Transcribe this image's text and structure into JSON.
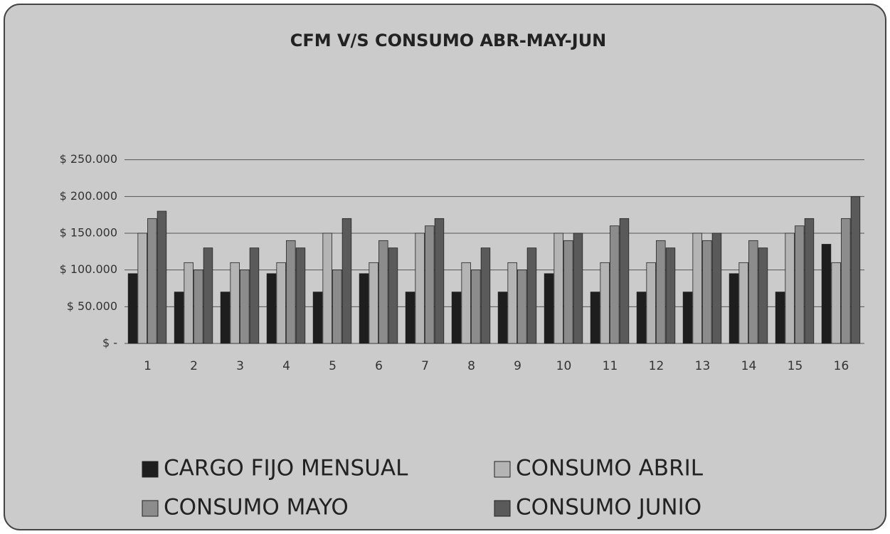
{
  "chart_data": {
    "type": "bar",
    "title": "CFM V/S CONSUMO ABR-MAY-JUN",
    "categories": [
      "1",
      "2",
      "3",
      "4",
      "5",
      "6",
      "7",
      "8",
      "9",
      "10",
      "11",
      "12",
      "13",
      "14",
      "15",
      "16"
    ],
    "series": [
      {
        "name": "CARGO FIJO MENSUAL",
        "color": "#1e1e1e",
        "values": [
          95000,
          70000,
          70000,
          95000,
          70000,
          95000,
          70000,
          70000,
          70000,
          95000,
          70000,
          70000,
          70000,
          95000,
          70000,
          135000
        ]
      },
      {
        "name": "CONSUMO ABRIL",
        "color": "#b4b4b4",
        "values": [
          150000,
          110000,
          110000,
          110000,
          150000,
          110000,
          150000,
          110000,
          110000,
          150000,
          110000,
          110000,
          150000,
          110000,
          150000,
          110000
        ]
      },
      {
        "name": "CONSUMO MAYO",
        "color": "#8c8c8c",
        "values": [
          170000,
          100000,
          100000,
          140000,
          100000,
          140000,
          160000,
          100000,
          100000,
          140000,
          160000,
          140000,
          140000,
          140000,
          160000,
          170000
        ]
      },
      {
        "name": "CONSUMO JUNIO",
        "color": "#5a5a5a",
        "values": [
          180000,
          130000,
          130000,
          130000,
          170000,
          130000,
          170000,
          130000,
          130000,
          150000,
          170000,
          130000,
          150000,
          130000,
          170000,
          200000
        ]
      }
    ],
    "ylim": [
      0,
      300000
    ],
    "yticks": [
      {
        "value": 0,
        "label": "$ -"
      },
      {
        "value": 50000,
        "label": "$ 50.000"
      },
      {
        "value": 100000,
        "label": "$ 100.000"
      },
      {
        "value": 150000,
        "label": "$ 150.000"
      },
      {
        "value": 200000,
        "label": "$ 200.000"
      },
      {
        "value": 250000,
        "label": "$ 250.000"
      }
    ],
    "grid": true
  }
}
